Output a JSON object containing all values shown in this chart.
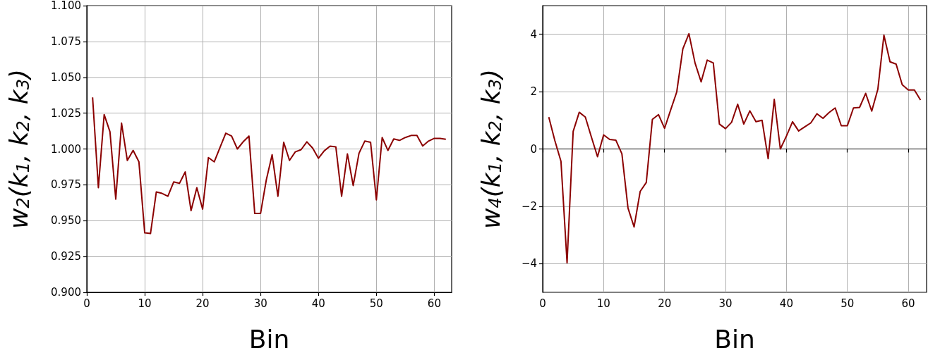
{
  "chart_data": [
    {
      "type": "line",
      "xlabel": "Bin",
      "ylabel": "w$_{2}$(k$_{1}$, k$_{2}$, k$_{3}$)",
      "xlim": [
        0,
        63
      ],
      "ylim": [
        0.9,
        1.1
      ],
      "xticks": [
        0,
        10,
        20,
        30,
        40,
        50,
        60
      ],
      "yticks": [
        {
          "value": 0.9,
          "label": "0.900"
        },
        {
          "value": 0.925,
          "label": "0.925"
        },
        {
          "value": 0.95,
          "label": "0.950"
        },
        {
          "value": 0.975,
          "label": "0.975"
        },
        {
          "value": 1.0,
          "label": "1.000"
        },
        {
          "value": 1.025,
          "label": "1.025"
        },
        {
          "value": 1.05,
          "label": "1.050"
        },
        {
          "value": 1.075,
          "label": "1.075"
        },
        {
          "value": 1.1,
          "label": "1.100"
        }
      ],
      "grid": true,
      "marker": "none",
      "line_style": "solid",
      "x": [
        1,
        2,
        3,
        4,
        5,
        6,
        7,
        8,
        9,
        10,
        11,
        12,
        13,
        14,
        15,
        16,
        17,
        18,
        19,
        20,
        21,
        22,
        23,
        24,
        25,
        26,
        27,
        28,
        29,
        30,
        31,
        32,
        33,
        34,
        35,
        36,
        37,
        38,
        39,
        40,
        41,
        42,
        43,
        44,
        45,
        46,
        47,
        48,
        49,
        50,
        51,
        52,
        53,
        54,
        55,
        56,
        57,
        58,
        59,
        60,
        61,
        62
      ],
      "series": [
        {
          "color": "#8b0000",
          "values": [
            1.036,
            0.973,
            1.024,
            1.012,
            0.965,
            1.018,
            0.992,
            0.999,
            0.991,
            0.9415,
            0.941,
            0.97,
            0.969,
            0.967,
            0.977,
            0.976,
            0.984,
            0.957,
            0.973,
            0.958,
            0.994,
            0.991,
            1.001,
            1.011,
            1.009,
            1.0,
            1.005,
            1.009,
            0.955,
            0.955,
            0.9785,
            0.996,
            0.967,
            1.0047,
            0.992,
            0.998,
            0.9995,
            1.005,
            1.0006,
            0.9935,
            0.9987,
            1.002,
            1.0015,
            0.967,
            0.9966,
            0.9745,
            0.997,
            1.0055,
            1.0047,
            0.9645,
            1.008,
            0.999,
            1.007,
            1.006,
            1.008,
            1.0094,
            1.0095,
            1.0021,
            1.0055,
            1.0074,
            1.0074,
            1.0068
          ]
        }
      ]
    },
    {
      "type": "line",
      "xlabel": "Bin",
      "ylabel": "w$_{4}$(k$_{1}$, k$_{2}$, k$_{3}$)",
      "xlim": [
        0,
        63
      ],
      "ylim": [
        -5,
        5
      ],
      "xticks": [
        0,
        10,
        20,
        30,
        40,
        50,
        60
      ],
      "yticks": [
        {
          "value": -4,
          "label": "−4"
        },
        {
          "value": -2,
          "label": "−2"
        },
        0,
        2,
        4
      ],
      "grid": true,
      "marker": "none",
      "line_style": "solid",
      "x": [
        1,
        2,
        3,
        4,
        5,
        6,
        7,
        8,
        9,
        10,
        11,
        12,
        13,
        14,
        15,
        16,
        17,
        18,
        19,
        20,
        21,
        22,
        23,
        24,
        25,
        26,
        27,
        28,
        29,
        30,
        31,
        32,
        33,
        34,
        35,
        36,
        37,
        38,
        39,
        40,
        41,
        42,
        43,
        44,
        45,
        46,
        47,
        48,
        49,
        50,
        51,
        52,
        53,
        54,
        55,
        56,
        57,
        58,
        59,
        60,
        61,
        62
      ],
      "series": [
        {
          "color": "#8b0000",
          "values": [
            1.11,
            0.29,
            -0.43,
            -3.97,
            0.61,
            1.28,
            1.11,
            0.41,
            -0.27,
            0.49,
            0.33,
            0.31,
            -0.17,
            -2.06,
            -2.72,
            -1.48,
            -1.17,
            1.03,
            1.2,
            0.72,
            1.36,
            1.99,
            3.49,
            4.02,
            3.0,
            2.34,
            3.1,
            3.0,
            0.87,
            0.71,
            0.93,
            1.56,
            0.87,
            1.33,
            0.95,
            1.0,
            -0.34,
            1.73,
            0.0,
            0.45,
            0.95,
            0.63,
            0.77,
            0.91,
            1.23,
            1.07,
            1.27,
            1.43,
            0.81,
            0.81,
            1.43,
            1.45,
            1.94,
            1.32,
            2.08,
            3.97,
            3.04,
            2.96,
            2.24,
            2.06,
            2.06,
            1.71
          ]
        }
      ]
    }
  ]
}
